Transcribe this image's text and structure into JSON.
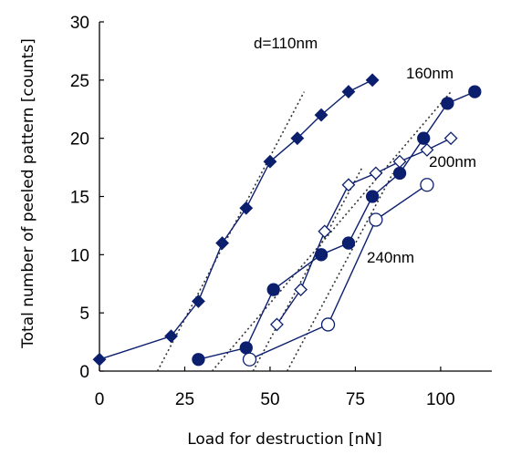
{
  "chart_data": {
    "type": "scatter",
    "xlabel": "Load for destruction [nN]",
    "ylabel": "Total number of peeled pattern [counts]",
    "xlim": [
      0,
      115
    ],
    "ylim": [
      0,
      30
    ],
    "xticks": [
      "0",
      "25",
      "50",
      "75",
      "100"
    ],
    "yticks": [
      "0",
      "5",
      "10",
      "15",
      "20",
      "25",
      "30"
    ],
    "grid": false,
    "line_color": "#0b1f6e",
    "series": [
      {
        "name": "d=110nm",
        "marker": "filled-diamond",
        "x": [
          0,
          21,
          29,
          36,
          43,
          50,
          58,
          65,
          73,
          80
        ],
        "y": [
          1,
          3,
          6,
          11,
          14,
          18,
          20,
          22,
          24,
          25
        ],
        "trend": [
          [
            17,
            0
          ],
          [
            60,
            24
          ]
        ]
      },
      {
        "name": "160nm",
        "marker": "filled-circle",
        "x": [
          29,
          43,
          51,
          65,
          73,
          80,
          88,
          95,
          102,
          110
        ],
        "y": [
          1,
          2,
          7,
          10,
          11,
          15,
          17,
          20,
          23,
          24
        ],
        "trend": [
          [
            33,
            0
          ],
          [
            103,
            24
          ]
        ]
      },
      {
        "name": "200nm",
        "marker": "open-diamond",
        "x": [
          52,
          59,
          66,
          73,
          81,
          88,
          96,
          103
        ],
        "y": [
          4,
          7,
          12,
          16,
          17,
          18,
          19,
          20
        ],
        "trend": [
          [
            45,
            0
          ],
          [
            77,
            17.5
          ]
        ]
      },
      {
        "name": "240nm",
        "marker": "open-circle",
        "x": [
          44,
          67,
          81,
          96
        ],
        "y": [
          1,
          4,
          13,
          16
        ],
        "trend": [
          [
            55,
            0
          ],
          [
            86,
            17
          ]
        ]
      }
    ]
  }
}
